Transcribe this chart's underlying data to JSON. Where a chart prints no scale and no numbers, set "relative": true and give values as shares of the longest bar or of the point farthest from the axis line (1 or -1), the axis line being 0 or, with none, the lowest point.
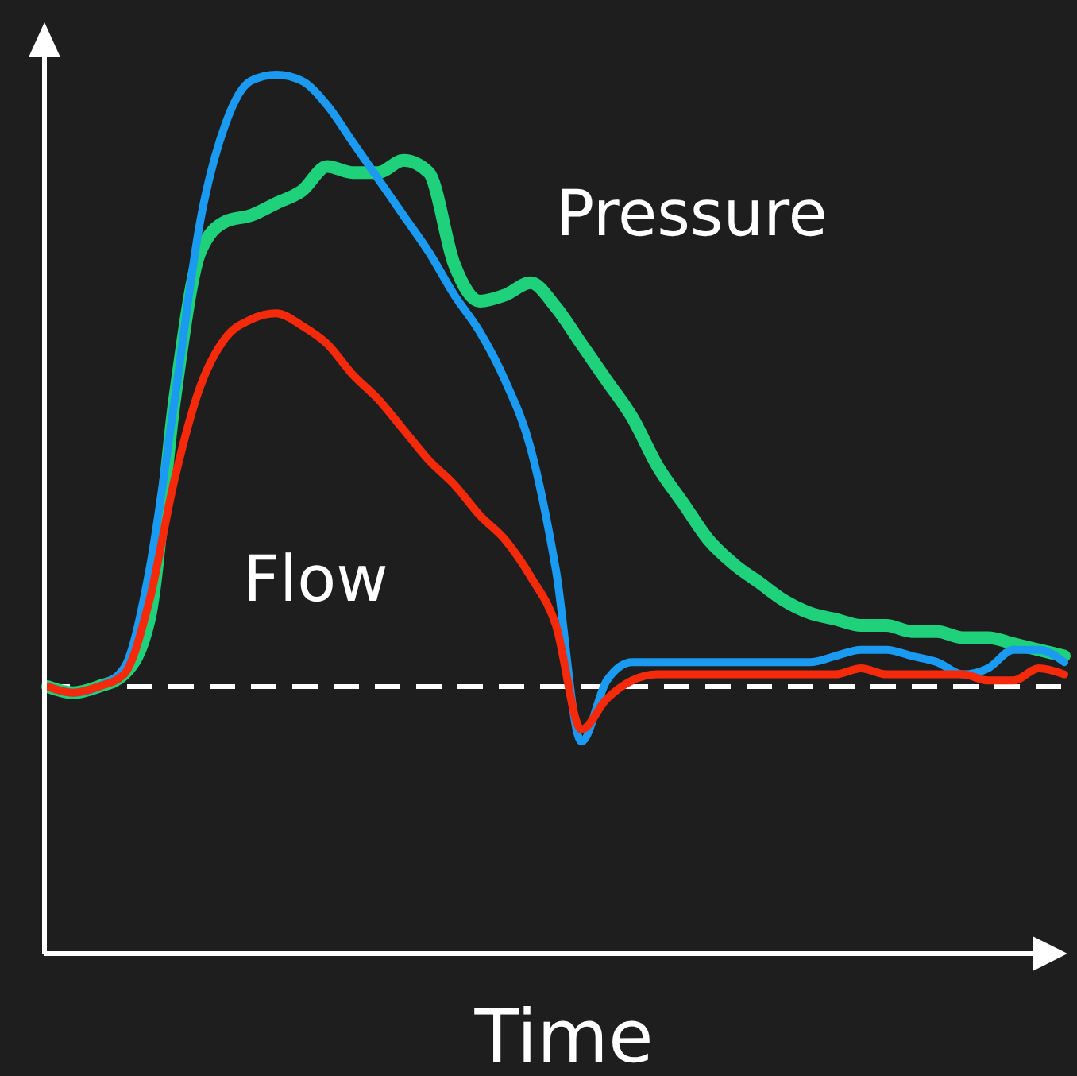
{
  "chart_data": {
    "type": "line",
    "relative": true,
    "xlabel": "Time",
    "categories": [
      null,
      null,
      null,
      null,
      null,
      null,
      null,
      null,
      null,
      null,
      null,
      null,
      null,
      null,
      null,
      null,
      null,
      null,
      null,
      null,
      null,
      null,
      null,
      null,
      null,
      null,
      null,
      null,
      null,
      null,
      null,
      null,
      null,
      null,
      null,
      null,
      null,
      null,
      null,
      null,
      null
    ],
    "series": [
      {
        "color": "#1fd17a",
        "values": [
          0,
          -0.01,
          0,
          0.02,
          0.11,
          0.47,
          0.71,
          0.76,
          0.77,
          0.79,
          0.81,
          0.85,
          0.84,
          0.84,
          0.86,
          0.84,
          0.69,
          0.63,
          0.64,
          0.66,
          0.62,
          0.56,
          0.5,
          0.44,
          0.36,
          0.3,
          0.24,
          0.2,
          0.17,
          0.14,
          0.12,
          0.11,
          0.1,
          0.1,
          0.09,
          0.09,
          0.08,
          0.08,
          0.07,
          0.06,
          0.05
        ]
      },
      {
        "color": "#1a9af0",
        "values": [
          0,
          -0.01,
          0,
          0.03,
          0.19,
          0.47,
          0.76,
          0.92,
          0.99,
          1,
          0.99,
          0.95,
          0.89,
          0.83,
          0.77,
          0.71,
          0.64,
          0.58,
          0.5,
          0.39,
          0.19,
          -0.09,
          0.01,
          0.04,
          0.04,
          0.04,
          0.04,
          0.04,
          0.04,
          0.04,
          0.04,
          0.05,
          0.06,
          0.06,
          0.05,
          0.04,
          0.02,
          0.03,
          0.06,
          0.06,
          0.04
        ]
      },
      {
        "color": "#f52a0a",
        "values": [
          0,
          -0.01,
          0,
          0.02,
          0.14,
          0.34,
          0.49,
          0.57,
          0.6,
          0.61,
          0.59,
          0.56,
          0.51,
          0.47,
          0.42,
          0.37,
          0.33,
          0.28,
          0.24,
          0.18,
          0.1,
          -0.07,
          -0.02,
          0.01,
          0.02,
          0.02,
          0.02,
          0.02,
          0.02,
          0.02,
          0.02,
          0.02,
          0.03,
          0.02,
          0.02,
          0.02,
          0.02,
          0.01,
          0.01,
          0.03,
          0.02
        ]
      }
    ],
    "ref_lines": [
      {
        "axis": "y",
        "value": 0,
        "color": "#ffffff",
        "line_style": "dashed"
      }
    ],
    "annotations": [
      "Pressure",
      "Flow"
    ],
    "grid": false,
    "marker": "none",
    "line_style": "solid"
  }
}
